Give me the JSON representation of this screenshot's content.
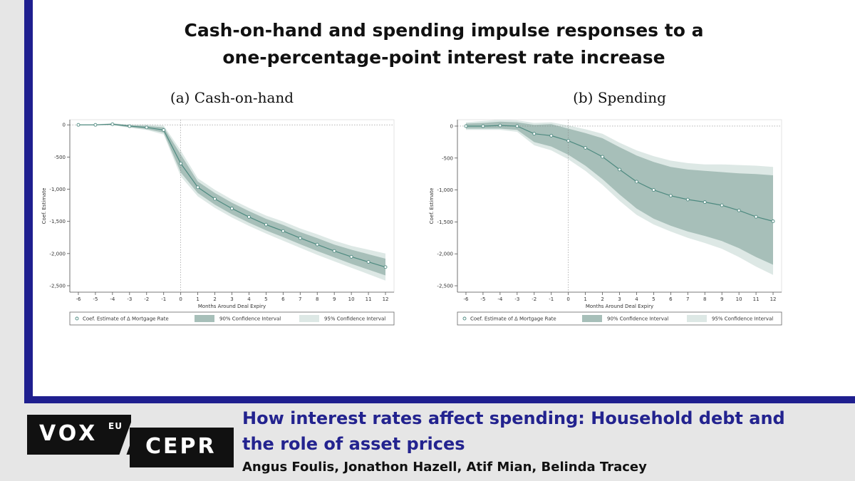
{
  "header": {
    "title_line1": "Cash-on-hand and spending impulse responses to a",
    "title_line2": "one-percentage-point interest rate increase"
  },
  "footer": {
    "logo_vox": "VOX",
    "logo_eu": "EU",
    "logo_cepr": "CEPR",
    "article_title_line1": "How interest rates affect spending: Household debt and",
    "article_title_line2": "the role of asset prices",
    "authors": "Angus Foulis, Jonathon Hazell, Atif Mian, Belinda Tracey"
  },
  "colors": {
    "frame": "#1f1f8f",
    "article_title": "#23238f",
    "ci90": "#a7bfb9",
    "ci95": "#dde8e5",
    "line": "#4e8a80"
  },
  "chart_data": [
    {
      "type": "line",
      "title": "(a)  Cash-on-hand",
      "xlabel": "Months Around Deal Expiry",
      "ylabel": "Coef. Estimate",
      "x": [
        -6,
        -5,
        -4,
        -3,
        -2,
        -1,
        0,
        1,
        2,
        3,
        4,
        5,
        6,
        7,
        8,
        9,
        10,
        11,
        12
      ],
      "xticks": [
        "-6",
        "-5",
        "-4",
        "-3",
        "-2",
        "-1",
        "0",
        "1",
        "2",
        "3",
        "4",
        "5",
        "6",
        "7",
        "8",
        "9",
        "10",
        "11",
        "12"
      ],
      "yticks": [
        0,
        -500,
        -1000,
        -1500,
        -2000,
        -2500
      ],
      "ytick_labels": [
        "0",
        "-500",
        "-1,000",
        "-1,500",
        "-2,000",
        "-2,500"
      ],
      "ylim": [
        -2600,
        80
      ],
      "series": [
        {
          "name": "Coef. Estimate of Δ Mortgage Rate",
          "values": [
            0,
            0,
            10,
            -20,
            -40,
            -80,
            -600,
            -970,
            -1150,
            -1300,
            -1430,
            -1550,
            -1650,
            -1760,
            -1860,
            -1960,
            -2050,
            -2130,
            -2210
          ]
        }
      ],
      "ci90": {
        "name": "90% Confidence Interval",
        "lower": [
          -5,
          -5,
          0,
          -35,
          -65,
          -120,
          -740,
          -1060,
          -1240,
          -1390,
          -1520,
          -1640,
          -1745,
          -1855,
          -1960,
          -2060,
          -2160,
          -2250,
          -2340
        ],
        "upper": [
          5,
          5,
          20,
          -5,
          -15,
          -40,
          -460,
          -880,
          -1060,
          -1210,
          -1340,
          -1460,
          -1555,
          -1665,
          -1760,
          -1860,
          -1940,
          -2010,
          -2080
        ]
      },
      "ci95": {
        "name": "95% Confidence Interval",
        "lower": [
          -8,
          -8,
          -5,
          -45,
          -80,
          -150,
          -800,
          -1110,
          -1290,
          -1440,
          -1570,
          -1690,
          -1800,
          -1910,
          -2020,
          -2120,
          -2220,
          -2320,
          -2420
        ],
        "upper": [
          8,
          8,
          25,
          5,
          5,
          -10,
          -400,
          -830,
          -1010,
          -1160,
          -1290,
          -1410,
          -1500,
          -1610,
          -1700,
          -1800,
          -1880,
          -1940,
          -2000
        ]
      },
      "grid": false,
      "legend_position": "bottom"
    },
    {
      "type": "line",
      "title": "(b)  Spending",
      "xlabel": "Months Around Deal Expiry",
      "ylabel": "Coef. Estimate",
      "x": [
        -6,
        -5,
        -4,
        -3,
        -2,
        -1,
        0,
        1,
        2,
        3,
        4,
        5,
        6,
        7,
        8,
        9,
        10,
        11,
        12
      ],
      "xticks": [
        "-6",
        "-5",
        "-4",
        "-3",
        "-2",
        "-1",
        "0",
        "1",
        "2",
        "3",
        "4",
        "5",
        "6",
        "7",
        "8",
        "9",
        "10",
        "11",
        "12"
      ],
      "yticks": [
        0,
        -500,
        -1000,
        -1500,
        -2000,
        -2500
      ],
      "ytick_labels": [
        "0",
        "-500",
        "-1,000",
        "-1,500",
        "-2,000",
        "-2,500"
      ],
      "ylim": [
        -2600,
        100
      ],
      "series": [
        {
          "name": "Coef. Estimate of Δ Mortgage Rate",
          "values": [
            0,
            0,
            10,
            0,
            -120,
            -150,
            -230,
            -340,
            -480,
            -680,
            -870,
            -1000,
            -1090,
            -1150,
            -1190,
            -1240,
            -1320,
            -1420,
            -1490
          ]
        }
      ],
      "ci90": {
        "name": "90% Confidence Interval",
        "lower": [
          -40,
          -40,
          -40,
          -60,
          -250,
          -320,
          -450,
          -620,
          -830,
          -1070,
          -1290,
          -1450,
          -1560,
          -1650,
          -1720,
          -1800,
          -1910,
          -2050,
          -2170
        ],
        "upper": [
          40,
          50,
          70,
          60,
          20,
          30,
          -40,
          -110,
          -190,
          -330,
          -460,
          -560,
          -640,
          -680,
          -700,
          -720,
          -740,
          -750,
          -770
        ]
      },
      "ci95": {
        "name": "95% Confidence Interval",
        "lower": [
          -60,
          -60,
          -60,
          -90,
          -300,
          -380,
          -520,
          -700,
          -920,
          -1170,
          -1390,
          -1540,
          -1650,
          -1750,
          -1830,
          -1920,
          -2050,
          -2200,
          -2330
        ],
        "upper": [
          60,
          80,
          100,
          90,
          50,
          60,
          10,
          -50,
          -120,
          -260,
          -380,
          -470,
          -540,
          -580,
          -600,
          -600,
          -610,
          -620,
          -640
        ]
      },
      "grid": false,
      "legend_position": "bottom"
    }
  ]
}
